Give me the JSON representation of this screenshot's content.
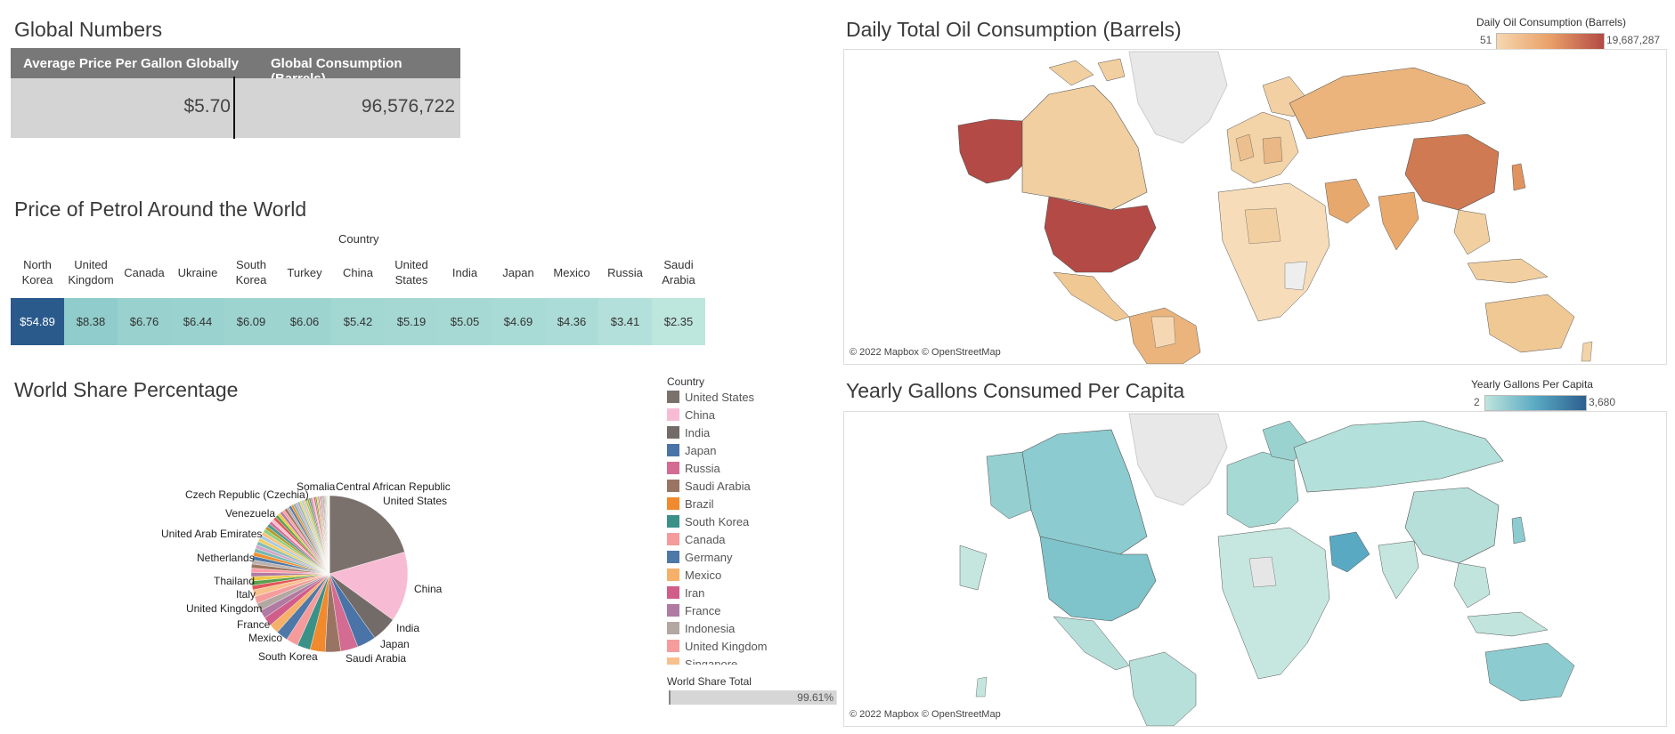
{
  "global_numbers": {
    "title": "Global Numbers",
    "col1_header": "Average Price Per Gallon Globally",
    "col2_header": "Global Consumption (Barrels)",
    "col1_value": "$5.70",
    "col2_value": "96,576,722"
  },
  "petrol": {
    "title": "Price of Petrol Around the World",
    "group_header": "Country",
    "countries": [
      {
        "name": "North Korea",
        "price": "$54.89",
        "color": "#2a5a8c"
      },
      {
        "name": "United Kingdom",
        "price": "$8.38",
        "color": "#8fcccb"
      },
      {
        "name": "Canada",
        "price": "$6.76",
        "color": "#98d1ce"
      },
      {
        "name": "Ukraine",
        "price": "$6.44",
        "color": "#9ad2cf"
      },
      {
        "name": "South Korea",
        "price": "$6.09",
        "color": "#9dd4d0"
      },
      {
        "name": "Turkey",
        "price": "$6.06",
        "color": "#9dd4d0"
      },
      {
        "name": "China",
        "price": "$5.42",
        "color": "#a2d7d2"
      },
      {
        "name": "United States",
        "price": "$5.19",
        "color": "#a5d8d3"
      },
      {
        "name": "India",
        "price": "$5.05",
        "color": "#a6d9d4"
      },
      {
        "name": "Japan",
        "price": "$4.69",
        "color": "#a9dbd6"
      },
      {
        "name": "Mexico",
        "price": "$4.36",
        "color": "#acdcd7"
      },
      {
        "name": "Russia",
        "price": "$3.41",
        "color": "#b3e0da"
      },
      {
        "name": "Saudi Arabia",
        "price": "$2.35",
        "color": "#bde6dd"
      }
    ]
  },
  "world_share": {
    "title": "World Share Percentage",
    "pie_labels": [
      "Somalia",
      "Central African Republic",
      "United States",
      "Czech Republic (Czechia)",
      "Venezuela",
      "United Arab Emirates",
      "Netherlands",
      "Thailand",
      "Italy",
      "United Kingdom",
      "France",
      "Mexico",
      "South Korea",
      "Saudi Arabia",
      "Japan",
      "India",
      "China"
    ],
    "legend_title": "Country",
    "legend": [
      {
        "name": "United States",
        "color": "#7a706c"
      },
      {
        "name": "China",
        "color": "#f7bcd3"
      },
      {
        "name": "India",
        "color": "#736b67"
      },
      {
        "name": "Japan",
        "color": "#4a73a8"
      },
      {
        "name": "Russia",
        "color": "#d36b92"
      },
      {
        "name": "Saudi Arabia",
        "color": "#9a7462"
      },
      {
        "name": "Brazil",
        "color": "#f08a2c"
      },
      {
        "name": "South Korea",
        "color": "#3a9187"
      },
      {
        "name": "Canada",
        "color": "#f59b9b"
      },
      {
        "name": "Germany",
        "color": "#4e78a8"
      },
      {
        "name": "Mexico",
        "color": "#f7b06a"
      },
      {
        "name": "Iran",
        "color": "#d15d8a"
      },
      {
        "name": "France",
        "color": "#b07aa2"
      },
      {
        "name": "Indonesia",
        "color": "#b3a7a3"
      },
      {
        "name": "United Kingdom",
        "color": "#f59c9c"
      },
      {
        "name": "Singapore",
        "color": "#f8c08c"
      }
    ],
    "total_title": "World Share Total",
    "total_value": "99.61%",
    "total_fraction": 0.9961
  },
  "oil_map": {
    "title": "Daily Total Oil Consumption (Barrels)",
    "legend_title": "Daily Oil Consumption (Barrels)",
    "legend_min": "51",
    "legend_max": "19,687,287",
    "credit": "© 2022 Mapbox © OpenStreetMap",
    "colors": {
      "low": "#f6d7b0",
      "high": "#b34a45"
    }
  },
  "capita_map": {
    "title": "Yearly Gallons Consumed Per Capita",
    "legend_title": "Yearly Gallons Per Capita",
    "legend_min": "2",
    "legend_max": "3,680",
    "credit": "© 2022 Mapbox © OpenStreetMap",
    "colors": {
      "low": "#bfe4dc",
      "high": "#2c5f8f"
    }
  }
}
